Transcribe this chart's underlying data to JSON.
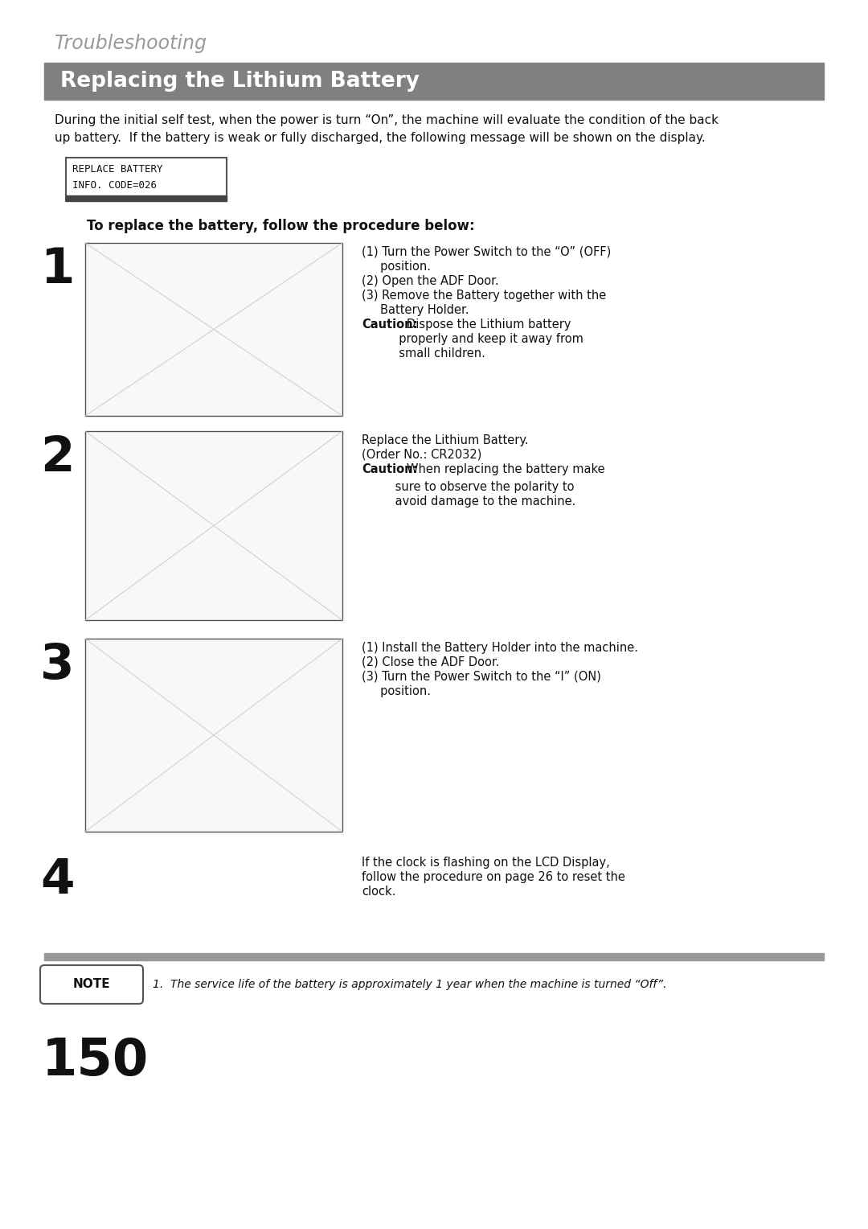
{
  "page_bg": "#ffffff",
  "header_section_color": "#808080",
  "header_text_color": "#ffffff",
  "troubleshooting_label": "Troubleshooting",
  "section_title": "Replacing the Lithium Battery",
  "intro_line1": "During the initial self test, when the power is turn “On”, the machine will evaluate the condition of the back",
  "intro_line2": "up battery.  If the battery is weak or fully discharged, the following message will be shown on the display.",
  "display_code_lines": [
    "REPLACE BATTERY",
    "INFO. CODE=026"
  ],
  "procedure_label": "To replace the battery, follow the procedure below:",
  "step1_num": "1",
  "step1_lines": [
    {
      "text": "(1) Turn the Power Switch to the “O” (OFF)",
      "bold_prefix": ""
    },
    {
      "text": "     position.",
      "bold_prefix": ""
    },
    {
      "text": "(2) Open the ADF Door.",
      "bold_prefix": ""
    },
    {
      "text": "(3) Remove the Battery together with the",
      "bold_prefix": ""
    },
    {
      "text": "     Battery Holder.",
      "bold_prefix": ""
    },
    {
      "text": "Dispose the Lithium battery",
      "bold_prefix": "Caution:"
    },
    {
      "text": "          properly and keep it away from",
      "bold_prefix": ""
    },
    {
      "text": "          small children.",
      "bold_prefix": ""
    }
  ],
  "step2_num": "2",
  "step2_lines": [
    {
      "text": "Replace the Lithium Battery.",
      "bold_prefix": ""
    },
    {
      "text": "(Order No.: CR2032)",
      "bold_prefix": ""
    },
    {
      "text": "When replacing the battery make",
      "bold_prefix": "Caution:"
    },
    {
      "text": "         sure to observe the polarity to",
      "bold_prefix": ""
    },
    {
      "text": "         avoid damage to the machine.",
      "bold_prefix": ""
    }
  ],
  "step3_num": "3",
  "step3_lines": [
    {
      "text": "(1) Install the Battery Holder into the machine.",
      "bold_prefix": ""
    },
    {
      "text": "(2) Close the ADF Door.",
      "bold_prefix": ""
    },
    {
      "text": "(3) Turn the Power Switch to the “I” (ON)",
      "bold_prefix": ""
    },
    {
      "text": "     position.",
      "bold_prefix": ""
    }
  ],
  "step4_num": "4",
  "step4_lines": [
    {
      "text": "If the clock is flashing on the LCD Display,",
      "bold_prefix": ""
    },
    {
      "text": "follow the procedure on page 26 to reset the",
      "bold_prefix": ""
    },
    {
      "text": "clock.",
      "bold_prefix": ""
    }
  ],
  "note_text": "1.  The service life of the battery is approximately 1 year when the machine is turned “Off”.",
  "page_number": "150",
  "footer_bar_color": "#999999",
  "step_img_box_color": "#f8f8f8",
  "step_img_border_color": "#555555"
}
